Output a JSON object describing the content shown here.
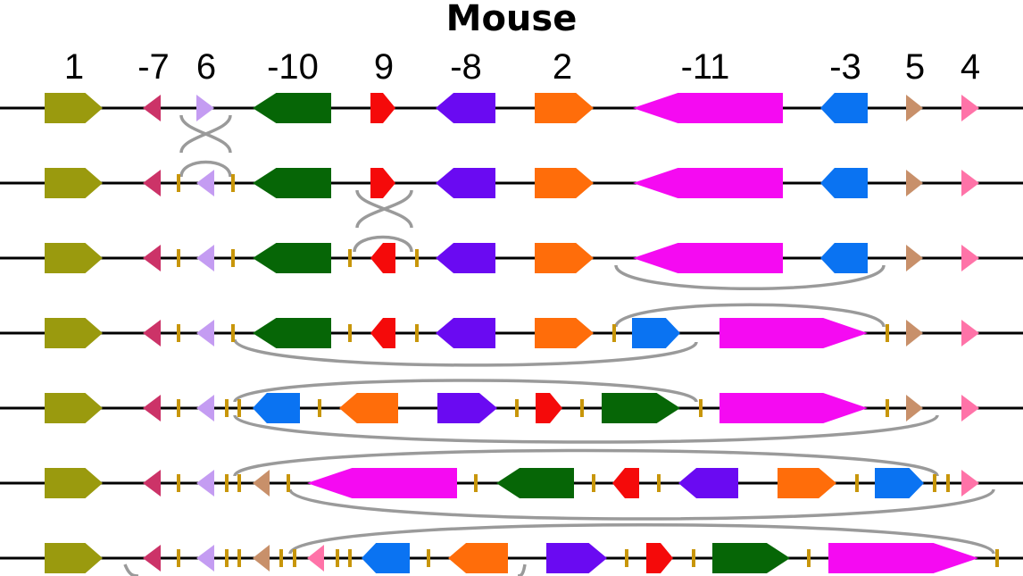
{
  "title": "Mouse",
  "gene_headers": [
    "1",
    "-7",
    "6",
    "-10",
    "9",
    "-8",
    "2",
    "-11",
    "-3",
    "5",
    "4"
  ],
  "colors": {
    "g1": "#9a9a0e",
    "g2": "#ff6d0a",
    "g3": "#0a73f2",
    "g4": "#ff73a8",
    "g5": "#c8906a",
    "g6": "#c49cf2",
    "g7": "#cc3368",
    "g8": "#6a0af2",
    "g9": "#f50a0a",
    "g10": "#066606",
    "g11": "#f50af2",
    "breakpoint": "#c8960a",
    "reversal_arc": "#9a9a9a",
    "chromosome": "#000000"
  },
  "rows_count": 7
}
